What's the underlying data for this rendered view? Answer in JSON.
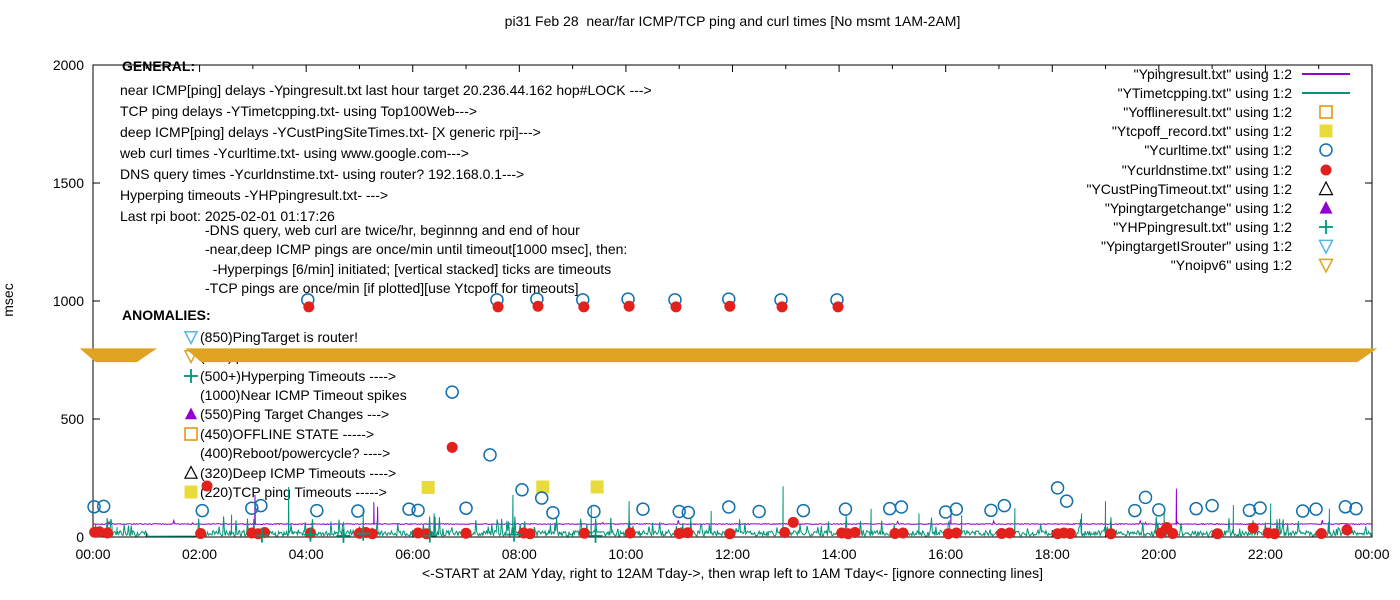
{
  "title": "pi31 Feb 28  near/far ICMP/TCP ping and curl times [No msmt 1AM-2AM]",
  "general": {
    "heading": "GENERAL:",
    "lines": [
      "near ICMP[ping] delays -Ypingresult.txt last hour target 20.236.44.162 hop#LOCK --->",
      "TCP ping delays -YTimetcpping.txt- using Top100Web--->",
      "deep ICMP[ping] delays -YCustPingSiteTimes.txt- [X generic rpi]--->",
      "web curl times -Ycurltime.txt- using www.google.com--->",
      "DNS query times -Ycurldnstime.txt- using router? 192.168.0.1--->",
      "Hyperping timeouts -YHPpingresult.txt- --->",
      "Last rpi boot: 2025-02-01 01:17:26"
    ]
  },
  "notes": [
    "-DNS query, web curl are twice/hr, beginnng and end of hour",
    "-near,deep ICMP pings are once/min until timeout[1000 msec], then:",
    "  -Hyperpings [6/min] initiated; [vertical stacked] ticks are timeouts",
    "-TCP pings are once/min [if plotted][use Ytcpoff for timeouts]"
  ],
  "anomalies": {
    "heading": "ANOMALIES:",
    "items": [
      {
        "marker": "tridown-open",
        "color": "#56B4E9",
        "label": "(850)PingTarget is router!"
      },
      {
        "marker": "tridown-open",
        "color": "#DFA321",
        "label": "(785)ip v6 failed ->"
      },
      {
        "marker": "plus",
        "color": "#009578",
        "label": "(500+)Hyperping Timeouts ---->"
      },
      {
        "marker": "none",
        "color": "",
        "label": "(1000)Near ICMP Timeout spikes"
      },
      {
        "marker": "triangle-filled",
        "color": "#9400D3",
        "label": "(550)Ping Target Changes --->"
      },
      {
        "marker": "square-open",
        "color": "#E39000",
        "label": "(450)OFFLINE STATE ----->"
      },
      {
        "marker": "none",
        "color": "",
        "label": "(400)Reboot/powercycle? ---->"
      },
      {
        "marker": "triangle-open",
        "color": "#000000",
        "label": "(320)Deep ICMP Timeouts ---->"
      },
      {
        "marker": "square-filled",
        "color": "#E8DC3C",
        "label": "(220)TCP ping Timeouts ----->"
      }
    ]
  },
  "legend": {
    "items": [
      {
        "label": "\"Ypingresult.txt\" using 1:2",
        "marker": "line",
        "color": "#9400D3"
      },
      {
        "label": "\"YTimetcpping.txt\" using 1:2",
        "marker": "line",
        "color": "#009578"
      },
      {
        "label": "\"Yofflineresult.txt\" using 1:2",
        "marker": "square-open",
        "color": "#E39000"
      },
      {
        "label": "\"Ytcpoff_record.txt\" using 1:2",
        "marker": "square-filled",
        "color": "#E8DC3C"
      },
      {
        "label": "\"Ycurltime.txt\" using 1:2",
        "marker": "circle-open",
        "color": "#1170AD"
      },
      {
        "label": "\"Ycurldnstime.txt\" using 1:2",
        "marker": "circle-filled",
        "color": "#E2201C"
      },
      {
        "label": "\"YCustPingTimeout.txt\" using 1:2",
        "marker": "triangle-open",
        "color": "#000000"
      },
      {
        "label": "\"Ypingtargetchange\" using 1:2",
        "marker": "triangle-filled",
        "color": "#9400D3"
      },
      {
        "label": "\"YHPpingresult.txt\" using 1:2",
        "marker": "plus",
        "color": "#009578"
      },
      {
        "label": "\"YpingtargetISrouter\" using 1:2",
        "marker": "tridown-open",
        "color": "#56B4E9"
      },
      {
        "label": "\"Ynoipv6\" using 1:2",
        "marker": "tridown-open",
        "color": "#DFA321"
      }
    ]
  },
  "chart_data": {
    "type": "mixed-line-scatter",
    "title": "pi31 Feb 28  near/far ICMP/TCP ping and curl times [No msmt 1AM-2AM]",
    "xlabel": "<-START at 2AM Yday, right to 12AM Tday->, then wrap left to 1AM Tday<- [ignore connecting lines]",
    "ylabel": "msec",
    "xlim": [
      0,
      24
    ],
    "ylim": [
      0,
      2000
    ],
    "grid": false,
    "xtick_hours": [
      0,
      2,
      4,
      6,
      8,
      10,
      12,
      14,
      16,
      18,
      20,
      22,
      24
    ],
    "xtick_labels": [
      "00:00",
      "02:00",
      "04:00",
      "06:00",
      "08:00",
      "10:00",
      "12:00",
      "14:00",
      "16:00",
      "18:00",
      "20:00",
      "22:00",
      "00:00"
    ],
    "ytick_values": [
      0,
      500,
      1000,
      1500,
      2000
    ],
    "ytick_labels": [
      "0",
      "500",
      "1000",
      "1500",
      "2000"
    ],
    "no_measurement_gap_hours": [
      1.05,
      1.95
    ],
    "band": {
      "name": "Ynoipv6",
      "color": "#DFA321",
      "value_msec": 770,
      "half_msec": 29,
      "segments_hours": [
        [
          -0.25,
          1.2
        ],
        [
          1.73,
          24.1
        ]
      ]
    },
    "series": [
      {
        "name": "Ypingresult.txt",
        "kind": "line",
        "color": "#9400D3",
        "baseline": 55,
        "noise": 2,
        "bump_chance": 0.01,
        "bump_max": 15,
        "spikes": [
          [
            3.04,
            178
          ],
          [
            5.27,
            148
          ],
          [
            5.34,
            128
          ],
          [
            16.1,
            95
          ],
          [
            20.33,
            205
          ]
        ]
      },
      {
        "name": "YTimetcpping.txt",
        "kind": "line",
        "color": "#009578",
        "baseline": 15,
        "noise": 12,
        "bump_chance": 0.12,
        "bump_max": 70,
        "gap": [
          1.05,
          1.95
        ],
        "spikes": [
          [
            0.05,
            58
          ],
          [
            0.45,
            42
          ],
          [
            2.6,
            95
          ],
          [
            3.67,
            212
          ],
          [
            5.07,
            120
          ],
          [
            6.4,
            100
          ],
          [
            7.88,
            178
          ],
          [
            9.35,
            130
          ],
          [
            10.06,
            152
          ],
          [
            11.6,
            110
          ],
          [
            12.95,
            215
          ],
          [
            14.6,
            120
          ],
          [
            15.5,
            100
          ],
          [
            16.3,
            92
          ],
          [
            17.3,
            122
          ],
          [
            18.55,
            100
          ],
          [
            19.0,
            152
          ],
          [
            20.1,
            110
          ],
          [
            21.4,
            135
          ],
          [
            22.1,
            142
          ],
          [
            23.2,
            120
          ]
        ]
      },
      {
        "name": "Yofflineresult.txt",
        "kind": "scatter",
        "marker": "square-open",
        "color": "#E39000",
        "points": []
      },
      {
        "name": "Ytcpoff_record.txt",
        "kind": "scatter",
        "marker": "square-filled",
        "color": "#E8DC3C",
        "points": [
          [
            6.29,
            210
          ],
          [
            8.44,
            212
          ],
          [
            9.46,
            212
          ]
        ]
      },
      {
        "name": "Ycurltime.txt",
        "kind": "scatter",
        "marker": "circle-open",
        "color": "#1170AD",
        "points": [
          [
            0.02,
            128
          ],
          [
            0.2,
            130
          ],
          [
            2.05,
            112
          ],
          [
            2.98,
            122
          ],
          [
            3.15,
            133
          ],
          [
            4.2,
            112
          ],
          [
            4.97,
            110
          ],
          [
            5.93,
            118
          ],
          [
            6.1,
            113
          ],
          [
            7.0,
            122
          ],
          [
            8.05,
            200
          ],
          [
            8.42,
            165
          ],
          [
            8.63,
            103
          ],
          [
            9.4,
            108
          ],
          [
            10.32,
            118
          ],
          [
            11.0,
            108
          ],
          [
            11.17,
            104
          ],
          [
            11.93,
            127
          ],
          [
            12.5,
            108
          ],
          [
            13.33,
            112
          ],
          [
            14.12,
            118
          ],
          [
            14.95,
            120
          ],
          [
            15.17,
            127
          ],
          [
            16.0,
            106
          ],
          [
            16.2,
            118
          ],
          [
            16.85,
            113
          ],
          [
            17.1,
            133
          ],
          [
            18.1,
            208
          ],
          [
            18.27,
            152
          ],
          [
            19.55,
            112
          ],
          [
            19.75,
            168
          ],
          [
            20.0,
            115
          ],
          [
            20.7,
            120
          ],
          [
            21.0,
            133
          ],
          [
            21.7,
            113
          ],
          [
            21.9,
            123
          ],
          [
            22.7,
            110
          ],
          [
            22.95,
            118
          ],
          [
            23.5,
            128
          ],
          [
            23.7,
            120
          ],
          [
            4.03,
            1005
          ],
          [
            7.58,
            1005
          ],
          [
            8.33,
            1008
          ],
          [
            9.19,
            1005
          ],
          [
            10.04,
            1008
          ],
          [
            10.92,
            1005
          ],
          [
            11.93,
            1008
          ],
          [
            12.91,
            1005
          ],
          [
            13.96,
            1005
          ],
          [
            6.74,
            614
          ],
          [
            7.45,
            348
          ]
        ]
      },
      {
        "name": "Ycurldnstime.txt",
        "kind": "scatter",
        "marker": "circle-filled",
        "color": "#E2201C",
        "points": [
          [
            0.03,
            20
          ],
          [
            0.12,
            22
          ],
          [
            0.27,
            17
          ],
          [
            2.02,
            15
          ],
          [
            2.14,
            216
          ],
          [
            2.98,
            17
          ],
          [
            3.1,
            14
          ],
          [
            3.22,
            19
          ],
          [
            4.08,
            17
          ],
          [
            5.0,
            16
          ],
          [
            5.12,
            19
          ],
          [
            5.24,
            14
          ],
          [
            6.1,
            17
          ],
          [
            6.26,
            14
          ],
          [
            7.0,
            16
          ],
          [
            8.08,
            17
          ],
          [
            8.2,
            14
          ],
          [
            9.22,
            16
          ],
          [
            10.08,
            17
          ],
          [
            11.0,
            15
          ],
          [
            11.16,
            18
          ],
          [
            11.95,
            14
          ],
          [
            12.98,
            19
          ],
          [
            13.14,
            62
          ],
          [
            14.05,
            17
          ],
          [
            14.17,
            14
          ],
          [
            14.3,
            19
          ],
          [
            15.05,
            15
          ],
          [
            15.2,
            17
          ],
          [
            16.05,
            14
          ],
          [
            16.2,
            17
          ],
          [
            17.05,
            15
          ],
          [
            17.2,
            17
          ],
          [
            18.1,
            14
          ],
          [
            18.22,
            17
          ],
          [
            18.34,
            15
          ],
          [
            19.1,
            14
          ],
          [
            20.04,
            17
          ],
          [
            20.15,
            40
          ],
          [
            20.26,
            15
          ],
          [
            21.1,
            14
          ],
          [
            21.77,
            38
          ],
          [
            22.05,
            17
          ],
          [
            22.17,
            14
          ],
          [
            23.05,
            15
          ],
          [
            23.53,
            30
          ],
          [
            4.05,
            975
          ],
          [
            7.6,
            975
          ],
          [
            8.35,
            978
          ],
          [
            9.21,
            975
          ],
          [
            10.06,
            978
          ],
          [
            10.94,
            975
          ],
          [
            11.95,
            978
          ],
          [
            12.93,
            975
          ],
          [
            13.98,
            975
          ],
          [
            6.74,
            380
          ]
        ]
      },
      {
        "name": "YCustPingTimeout.txt",
        "kind": "scatter",
        "marker": "triangle-open",
        "color": "#000000",
        "points": []
      },
      {
        "name": "Ypingtargetchange",
        "kind": "scatter",
        "marker": "triangle-filled",
        "color": "#9400D3",
        "points": []
      },
      {
        "name": "YHPpingresult.txt",
        "kind": "scatter",
        "marker": "plus",
        "color": "#009578",
        "points": [
          [
            3.17,
            6
          ],
          [
            4.08,
            10
          ],
          [
            4.7,
            5
          ],
          [
            5.07,
            14
          ],
          [
            6.32,
            6
          ],
          [
            7.9,
            10
          ],
          [
            9.43,
            5
          ]
        ]
      },
      {
        "name": "YpingtargetISrouter",
        "kind": "scatter",
        "marker": "tridown-open",
        "color": "#56B4E9",
        "points": []
      },
      {
        "name": "Ynoipv6",
        "kind": "scatter",
        "marker": "tridown-open",
        "color": "#DFA321",
        "points": []
      }
    ]
  }
}
